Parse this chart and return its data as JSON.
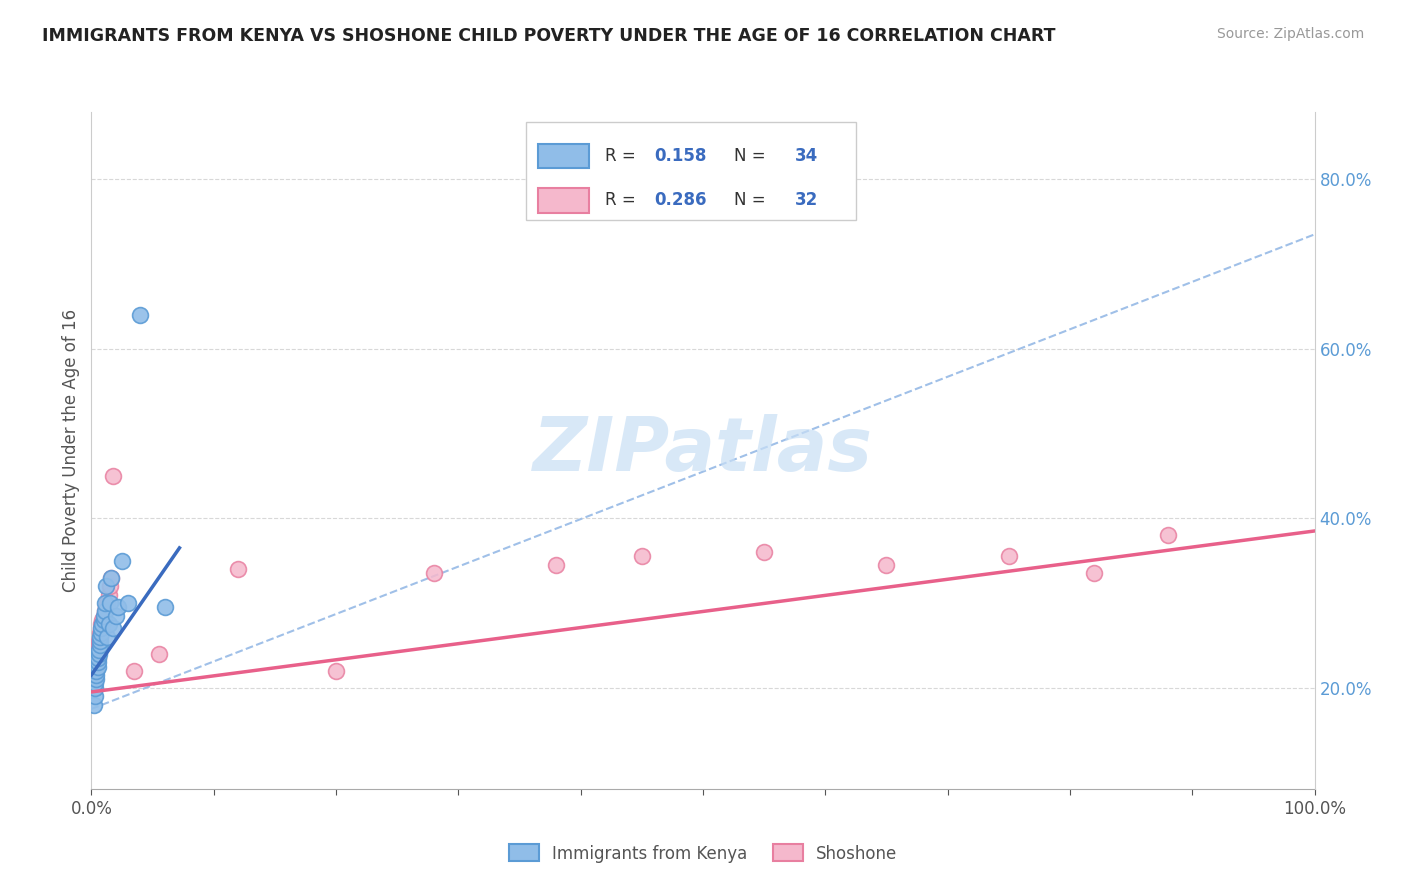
{
  "title": "IMMIGRANTS FROM KENYA VS SHOSHONE CHILD POVERTY UNDER THE AGE OF 16 CORRELATION CHART",
  "source": "Source: ZipAtlas.com",
  "ylabel": "Child Poverty Under the Age of 16",
  "xlim": [
    0.0,
    1.0
  ],
  "ylim": [
    0.08,
    0.88
  ],
  "xticklabels": [
    "0.0%",
    "",
    "",
    "",
    "",
    "",
    "",
    "",
    "",
    "",
    "100.0%"
  ],
  "yticks_right": [
    0.2,
    0.4,
    0.6,
    0.8
  ],
  "yticklabels_right": [
    "20.0%",
    "40.0%",
    "60.0%",
    "80.0%"
  ],
  "blue_scatter_face": "#90bde8",
  "blue_scatter_edge": "#5b9bd5",
  "pink_scatter_face": "#f5b8cc",
  "pink_scatter_edge": "#e87fa0",
  "blue_line_color": "#3a6bbf",
  "pink_line_color": "#e8608a",
  "dashed_line_color": "#a0c0e8",
  "grid_color": "#d8d8d8",
  "watermark_color": "#c8dff5",
  "kenya_x": [
    0.002,
    0.003,
    0.003,
    0.003,
    0.004,
    0.004,
    0.004,
    0.005,
    0.005,
    0.005,
    0.006,
    0.006,
    0.007,
    0.007,
    0.007,
    0.008,
    0.008,
    0.009,
    0.01,
    0.01,
    0.011,
    0.011,
    0.012,
    0.013,
    0.014,
    0.015,
    0.016,
    0.018,
    0.02,
    0.022,
    0.025,
    0.03,
    0.04,
    0.06
  ],
  "kenya_y": [
    0.18,
    0.19,
    0.2,
    0.205,
    0.21,
    0.215,
    0.22,
    0.225,
    0.23,
    0.235,
    0.24,
    0.245,
    0.25,
    0.255,
    0.26,
    0.265,
    0.27,
    0.275,
    0.28,
    0.285,
    0.29,
    0.3,
    0.32,
    0.26,
    0.275,
    0.3,
    0.33,
    0.27,
    0.285,
    0.295,
    0.35,
    0.3,
    0.64,
    0.295
  ],
  "shoshone_x": [
    0.003,
    0.004,
    0.004,
    0.005,
    0.005,
    0.006,
    0.006,
    0.007,
    0.007,
    0.008,
    0.008,
    0.009,
    0.01,
    0.011,
    0.012,
    0.013,
    0.014,
    0.015,
    0.016,
    0.018,
    0.035,
    0.055,
    0.12,
    0.2,
    0.28,
    0.38,
    0.45,
    0.55,
    0.65,
    0.75,
    0.82,
    0.88
  ],
  "shoshone_y": [
    0.22,
    0.225,
    0.23,
    0.235,
    0.245,
    0.25,
    0.255,
    0.26,
    0.265,
    0.27,
    0.275,
    0.28,
    0.285,
    0.29,
    0.295,
    0.3,
    0.31,
    0.32,
    0.33,
    0.45,
    0.22,
    0.24,
    0.34,
    0.22,
    0.335,
    0.345,
    0.355,
    0.36,
    0.345,
    0.355,
    0.335,
    0.38
  ],
  "blue_trendline": [
    [
      0.0,
      1.0
    ],
    [
      0.175,
      0.735
    ]
  ],
  "blue_trendline_solid": [
    [
      0.0,
      0.072
    ],
    [
      0.215,
      0.365
    ]
  ],
  "pink_trendline": [
    [
      0.0,
      1.0
    ],
    [
      0.195,
      0.385
    ]
  ]
}
